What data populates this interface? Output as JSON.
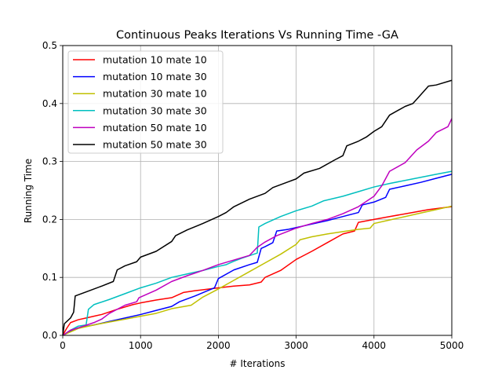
{
  "chart_data": {
    "type": "line",
    "title": "Continuous Peaks Iterations Vs Running Time -GA",
    "xlabel": "# Iterations",
    "ylabel": "Running Time",
    "xlim": [
      0,
      5000
    ],
    "ylim": [
      0,
      0.5
    ],
    "xticks": [
      0,
      1000,
      2000,
      3000,
      4000,
      5000
    ],
    "yticks": [
      0.0,
      0.1,
      0.2,
      0.3,
      0.4,
      0.5
    ],
    "xtick_labels": [
      "0",
      "1000",
      "2000",
      "3000",
      "4000",
      "5000"
    ],
    "ytick_labels": [
      "0.0",
      "0.1",
      "0.2",
      "0.3",
      "0.4",
      "0.5"
    ],
    "grid": true,
    "legend_position": "top-left",
    "series": [
      {
        "name": "mutation 10 mate 10",
        "color": "#ff0000",
        "points": [
          [
            0,
            0.0
          ],
          [
            50,
            0.012
          ],
          [
            100,
            0.022
          ],
          [
            200,
            0.027
          ],
          [
            300,
            0.03
          ],
          [
            400,
            0.033
          ],
          [
            500,
            0.036
          ],
          [
            700,
            0.045
          ],
          [
            900,
            0.053
          ],
          [
            1000,
            0.056
          ],
          [
            1200,
            0.061
          ],
          [
            1400,
            0.065
          ],
          [
            1550,
            0.074
          ],
          [
            1700,
            0.077
          ],
          [
            2000,
            0.082
          ],
          [
            2200,
            0.085
          ],
          [
            2400,
            0.087
          ],
          [
            2550,
            0.092
          ],
          [
            2600,
            0.1
          ],
          [
            2800,
            0.112
          ],
          [
            3000,
            0.131
          ],
          [
            3200,
            0.145
          ],
          [
            3400,
            0.16
          ],
          [
            3600,
            0.175
          ],
          [
            3750,
            0.18
          ],
          [
            3800,
            0.195
          ],
          [
            4000,
            0.2
          ],
          [
            4200,
            0.205
          ],
          [
            4500,
            0.212
          ],
          [
            4700,
            0.217
          ],
          [
            5000,
            0.222
          ]
        ]
      },
      {
        "name": "mutation 10 mate 30",
        "color": "#0000ff",
        "points": [
          [
            0,
            0.0
          ],
          [
            100,
            0.008
          ],
          [
            200,
            0.013
          ],
          [
            400,
            0.018
          ],
          [
            600,
            0.024
          ],
          [
            800,
            0.03
          ],
          [
            1000,
            0.036
          ],
          [
            1200,
            0.043
          ],
          [
            1400,
            0.05
          ],
          [
            1500,
            0.058
          ],
          [
            1700,
            0.068
          ],
          [
            1950,
            0.082
          ],
          [
            2000,
            0.098
          ],
          [
            2200,
            0.113
          ],
          [
            2400,
            0.122
          ],
          [
            2500,
            0.126
          ],
          [
            2550,
            0.15
          ],
          [
            2600,
            0.153
          ],
          [
            2700,
            0.16
          ],
          [
            2750,
            0.18
          ],
          [
            2900,
            0.183
          ],
          [
            3000,
            0.186
          ],
          [
            3200,
            0.192
          ],
          [
            3400,
            0.198
          ],
          [
            3600,
            0.205
          ],
          [
            3800,
            0.212
          ],
          [
            3850,
            0.225
          ],
          [
            4000,
            0.23
          ],
          [
            4150,
            0.238
          ],
          [
            4200,
            0.252
          ],
          [
            4400,
            0.258
          ],
          [
            4600,
            0.264
          ],
          [
            4800,
            0.271
          ],
          [
            5000,
            0.278
          ]
        ]
      },
      {
        "name": "mutation 30 mate 10",
        "color": "#c0c000",
        "points": [
          [
            0,
            0.0
          ],
          [
            200,
            0.012
          ],
          [
            400,
            0.018
          ],
          [
            600,
            0.023
          ],
          [
            800,
            0.028
          ],
          [
            1000,
            0.033
          ],
          [
            1200,
            0.038
          ],
          [
            1400,
            0.046
          ],
          [
            1650,
            0.052
          ],
          [
            1800,
            0.066
          ],
          [
            2000,
            0.08
          ],
          [
            2200,
            0.095
          ],
          [
            2400,
            0.11
          ],
          [
            2600,
            0.125
          ],
          [
            2800,
            0.14
          ],
          [
            3000,
            0.157
          ],
          [
            3050,
            0.165
          ],
          [
            3200,
            0.17
          ],
          [
            3400,
            0.175
          ],
          [
            3600,
            0.179
          ],
          [
            3800,
            0.183
          ],
          [
            3950,
            0.185
          ],
          [
            4000,
            0.193
          ],
          [
            4200,
            0.199
          ],
          [
            4400,
            0.205
          ],
          [
            4600,
            0.211
          ],
          [
            4800,
            0.217
          ],
          [
            5000,
            0.223
          ]
        ]
      },
      {
        "name": "mutation 30 mate 30",
        "color": "#00bfbf",
        "points": [
          [
            0,
            0.0
          ],
          [
            100,
            0.009
          ],
          [
            200,
            0.016
          ],
          [
            300,
            0.018
          ],
          [
            330,
            0.045
          ],
          [
            400,
            0.053
          ],
          [
            600,
            0.062
          ],
          [
            800,
            0.072
          ],
          [
            1000,
            0.082
          ],
          [
            1200,
            0.09
          ],
          [
            1400,
            0.1
          ],
          [
            1600,
            0.106
          ],
          [
            1800,
            0.112
          ],
          [
            2000,
            0.119
          ],
          [
            2100,
            0.122
          ],
          [
            2200,
            0.128
          ],
          [
            2300,
            0.133
          ],
          [
            2500,
            0.142
          ],
          [
            2520,
            0.187
          ],
          [
            2600,
            0.193
          ],
          [
            2800,
            0.205
          ],
          [
            3000,
            0.215
          ],
          [
            3200,
            0.223
          ],
          [
            3350,
            0.232
          ],
          [
            3600,
            0.24
          ],
          [
            3800,
            0.248
          ],
          [
            4000,
            0.256
          ],
          [
            4200,
            0.262
          ],
          [
            4500,
            0.27
          ],
          [
            4800,
            0.278
          ],
          [
            5000,
            0.283
          ]
        ]
      },
      {
        "name": "mutation 50 mate 10",
        "color": "#bf00bf",
        "points": [
          [
            0,
            0.0
          ],
          [
            100,
            0.009
          ],
          [
            200,
            0.013
          ],
          [
            400,
            0.022
          ],
          [
            500,
            0.028
          ],
          [
            600,
            0.038
          ],
          [
            800,
            0.052
          ],
          [
            950,
            0.058
          ],
          [
            980,
            0.065
          ],
          [
            1200,
            0.078
          ],
          [
            1400,
            0.093
          ],
          [
            1600,
            0.103
          ],
          [
            1800,
            0.112
          ],
          [
            2000,
            0.122
          ],
          [
            2200,
            0.13
          ],
          [
            2400,
            0.138
          ],
          [
            2450,
            0.145
          ],
          [
            2500,
            0.152
          ],
          [
            2600,
            0.161
          ],
          [
            2750,
            0.172
          ],
          [
            3000,
            0.185
          ],
          [
            3200,
            0.193
          ],
          [
            3400,
            0.2
          ],
          [
            3600,
            0.21
          ],
          [
            3800,
            0.222
          ],
          [
            4000,
            0.24
          ],
          [
            4100,
            0.258
          ],
          [
            4200,
            0.283
          ],
          [
            4400,
            0.298
          ],
          [
            4550,
            0.32
          ],
          [
            4700,
            0.335
          ],
          [
            4800,
            0.35
          ],
          [
            4950,
            0.36
          ],
          [
            5000,
            0.374
          ]
        ]
      },
      {
        "name": "mutation 50 mate 30",
        "color": "#000000",
        "points": [
          [
            0,
            0.0
          ],
          [
            20,
            0.02
          ],
          [
            100,
            0.03
          ],
          [
            140,
            0.04
          ],
          [
            160,
            0.068
          ],
          [
            300,
            0.075
          ],
          [
            500,
            0.085
          ],
          [
            650,
            0.093
          ],
          [
            700,
            0.113
          ],
          [
            800,
            0.12
          ],
          [
            950,
            0.127
          ],
          [
            1000,
            0.135
          ],
          [
            1200,
            0.145
          ],
          [
            1400,
            0.162
          ],
          [
            1450,
            0.172
          ],
          [
            1600,
            0.182
          ],
          [
            1800,
            0.193
          ],
          [
            2000,
            0.205
          ],
          [
            2100,
            0.212
          ],
          [
            2200,
            0.222
          ],
          [
            2400,
            0.235
          ],
          [
            2600,
            0.245
          ],
          [
            2700,
            0.255
          ],
          [
            2900,
            0.265
          ],
          [
            3000,
            0.27
          ],
          [
            3100,
            0.28
          ],
          [
            3300,
            0.288
          ],
          [
            3500,
            0.303
          ],
          [
            3600,
            0.31
          ],
          [
            3650,
            0.327
          ],
          [
            3800,
            0.335
          ],
          [
            3900,
            0.342
          ],
          [
            4000,
            0.352
          ],
          [
            4100,
            0.36
          ],
          [
            4200,
            0.38
          ],
          [
            4400,
            0.395
          ],
          [
            4500,
            0.4
          ],
          [
            4600,
            0.415
          ],
          [
            4700,
            0.43
          ],
          [
            4800,
            0.432
          ],
          [
            5000,
            0.44
          ]
        ]
      }
    ]
  }
}
